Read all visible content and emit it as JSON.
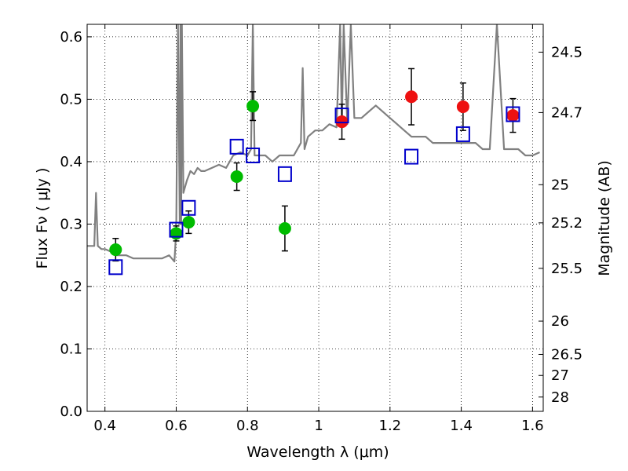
{
  "chart_data": {
    "type": "scatter",
    "xlabel": "Wavelength  λ (μm)",
    "ylabel": "Flux  Fν  ( μJy )",
    "y2label": "Magnitude (AB)",
    "xlim": [
      0.35,
      1.63
    ],
    "ylim": [
      0.0,
      0.62
    ],
    "grid": true,
    "x_ticks": [
      "0.4",
      "0.6",
      "0.8",
      "1",
      "1.2",
      "1.4",
      "1.6"
    ],
    "x_tick_values": [
      0.4,
      0.6,
      0.8,
      1.0,
      1.2,
      1.4,
      1.6
    ],
    "y_ticks": [
      "0.0",
      "0.1",
      "0.2",
      "0.3",
      "0.4",
      "0.5",
      "0.6"
    ],
    "y_tick_values": [
      0.0,
      0.1,
      0.2,
      0.3,
      0.4,
      0.5,
      0.6
    ],
    "mag_ticks": [
      "24.5",
      "24.7",
      "25",
      "25.2",
      "25.5",
      "26",
      "26.5",
      "27",
      "28"
    ],
    "mag_tick_values": [
      24.5,
      24.7,
      25.0,
      25.2,
      25.5,
      26.0,
      26.5,
      27.0,
      28.0
    ],
    "series": [
      {
        "kind": "line",
        "color": "#808080",
        "x": [
          0.35,
          0.37,
          0.375,
          0.38,
          0.39,
          0.4,
          0.42,
          0.43,
          0.44,
          0.46,
          0.48,
          0.5,
          0.52,
          0.54,
          0.56,
          0.58,
          0.595,
          0.6,
          0.605,
          0.61,
          0.612,
          0.614,
          0.616,
          0.62,
          0.63,
          0.64,
          0.65,
          0.66,
          0.67,
          0.68,
          0.7,
          0.72,
          0.74,
          0.76,
          0.78,
          0.8,
          0.81,
          0.815,
          0.82,
          0.83,
          0.85,
          0.87,
          0.89,
          0.91,
          0.93,
          0.95,
          0.955,
          0.96,
          0.97,
          0.99,
          1.01,
          1.03,
          1.05,
          1.06,
          1.065,
          1.07,
          1.08,
          1.09,
          1.1,
          1.12,
          1.14,
          1.16,
          1.18,
          1.2,
          1.22,
          1.24,
          1.26,
          1.28,
          1.3,
          1.32,
          1.34,
          1.36,
          1.38,
          1.4,
          1.42,
          1.44,
          1.46,
          1.48,
          1.5,
          1.52,
          1.54,
          1.56,
          1.58,
          1.6,
          1.62
        ],
        "y": [
          0.265,
          0.265,
          0.35,
          0.265,
          0.26,
          0.26,
          0.255,
          0.25,
          0.25,
          0.25,
          0.245,
          0.245,
          0.245,
          0.245,
          0.245,
          0.25,
          0.24,
          0.29,
          0.62,
          0.3,
          0.62,
          0.3,
          0.62,
          0.35,
          0.37,
          0.385,
          0.38,
          0.39,
          0.385,
          0.385,
          0.39,
          0.395,
          0.39,
          0.41,
          0.415,
          0.41,
          0.42,
          0.62,
          0.41,
          0.41,
          0.41,
          0.4,
          0.41,
          0.41,
          0.41,
          0.43,
          0.55,
          0.42,
          0.44,
          0.45,
          0.45,
          0.46,
          0.455,
          0.62,
          0.46,
          0.62,
          0.46,
          0.62,
          0.47,
          0.47,
          0.48,
          0.49,
          0.48,
          0.47,
          0.46,
          0.45,
          0.44,
          0.44,
          0.44,
          0.43,
          0.43,
          0.43,
          0.43,
          0.43,
          0.43,
          0.43,
          0.42,
          0.42,
          0.62,
          0.42,
          0.42,
          0.42,
          0.41,
          0.41,
          0.415
        ]
      },
      {
        "kind": "points",
        "marker": "circle",
        "color": "#00bb00",
        "points": [
          {
            "x": 0.43,
            "y": 0.259,
            "err": 0.018
          },
          {
            "x": 0.6,
            "y": 0.285,
            "err": 0.012
          },
          {
            "x": 0.635,
            "y": 0.303,
            "err": 0.018
          },
          {
            "x": 0.77,
            "y": 0.376,
            "err": 0.022
          },
          {
            "x": 0.815,
            "y": 0.489,
            "err": 0.023
          },
          {
            "x": 0.905,
            "y": 0.293,
            "err": 0.036
          }
        ]
      },
      {
        "kind": "points",
        "marker": "circle",
        "color": "#ee1111",
        "points": [
          {
            "x": 1.065,
            "y": 0.464,
            "err": 0.028
          },
          {
            "x": 1.26,
            "y": 0.504,
            "err": 0.045
          },
          {
            "x": 1.405,
            "y": 0.488,
            "err": 0.038
          },
          {
            "x": 1.545,
            "y": 0.474,
            "err": 0.027
          }
        ]
      },
      {
        "kind": "points",
        "marker": "square",
        "color": "#0000cc",
        "points": [
          {
            "x": 0.43,
            "y": 0.231
          },
          {
            "x": 0.6,
            "y": 0.291
          },
          {
            "x": 0.635,
            "y": 0.326
          },
          {
            "x": 0.77,
            "y": 0.424
          },
          {
            "x": 0.815,
            "y": 0.41
          },
          {
            "x": 0.905,
            "y": 0.38
          },
          {
            "x": 1.065,
            "y": 0.474
          },
          {
            "x": 1.26,
            "y": 0.408
          },
          {
            "x": 1.405,
            "y": 0.444
          },
          {
            "x": 1.545,
            "y": 0.476
          }
        ]
      }
    ]
  }
}
